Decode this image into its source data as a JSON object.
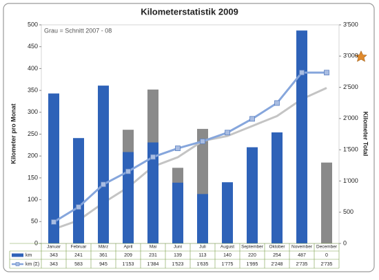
{
  "chart_data": {
    "type": "bar",
    "title": "Kilometerstatistik 2009",
    "annotation": "Grau = Schnitt 2007 - 08",
    "y_label": "Kilometer pro Monat",
    "y2_label": "Kilometer Total",
    "categories": [
      "Januar",
      "Februar",
      "März",
      "April",
      "Mai",
      "Juni",
      "Juli",
      "August",
      "September",
      "Oktober",
      "November",
      "December"
    ],
    "ylim": [
      0,
      500
    ],
    "yticks": [
      0,
      50,
      100,
      150,
      200,
      250,
      300,
      350,
      400,
      450,
      500
    ],
    "y2lim": [
      0,
      3500
    ],
    "y2ticks": [
      0,
      500,
      {
        "value": 1000,
        "label": "1'000"
      },
      {
        "value": 1500,
        "label": "1'500"
      },
      {
        "value": 2000,
        "label": "2'000"
      },
      {
        "value": 2500,
        "label": "2'500"
      },
      {
        "value": 3000,
        "label": "3'000"
      },
      {
        "value": 3500,
        "label": "3'500"
      }
    ],
    "grid": false,
    "series": [
      {
        "name": "km",
        "type": "bar",
        "color": "#2e62b8",
        "values": [
          343,
          241,
          361,
          209,
          231,
          139,
          113,
          140,
          220,
          254,
          487,
          0
        ]
      },
      {
        "name": "km (Σ)",
        "type": "line",
        "axis": "y2",
        "color": "#86a6dc",
        "values": [
          343,
          583,
          945,
          1153,
          1384,
          1523,
          1635,
          1775,
          1995,
          2248,
          2735,
          2735
        ],
        "value_labels": [
          "343",
          "583",
          "945",
          "1'153",
          "1'384",
          "1'523",
          "1'635",
          "1'775",
          "1'995",
          "2'248",
          "2'735",
          "2'735"
        ]
      },
      {
        "type": "bar",
        "color": "#8a8a8a",
        "values": [
          230,
          140,
          280,
          260,
          352,
          173,
          262,
          80,
          160,
          160,
          270,
          185
        ]
      },
      {
        "type": "line",
        "axis": "y2",
        "color": "#c4c4c4",
        "values": [
          230,
          370,
          650,
          900,
          1230,
          1380,
          1640,
          1720,
          1880,
          2040,
          2310,
          2490
        ]
      }
    ]
  }
}
